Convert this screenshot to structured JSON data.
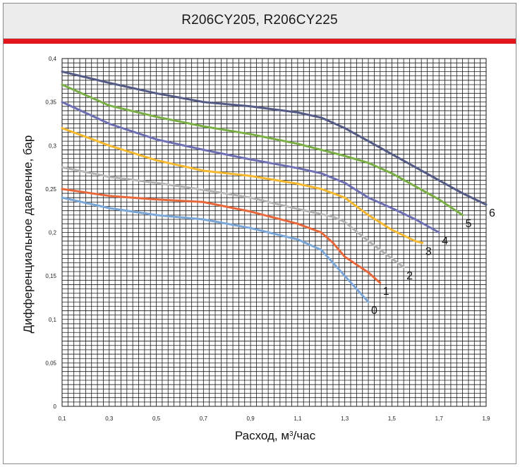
{
  "header": {
    "title": "R206CY205, R206CY225"
  },
  "colors": {
    "accent_bar": "#e3161c",
    "grid": "#1a1a1a"
  },
  "chart_data": {
    "type": "line",
    "title": "R206CY205, R206CY225",
    "xlabel": "Расход, м³/час",
    "ylabel": "Дифференциальное давление, бар",
    "xlim": [
      0.1,
      1.9
    ],
    "ylim": [
      0,
      0.4
    ],
    "x_ticks": [
      "0,1",
      "0,3",
      "0,5",
      "0,7",
      "0,9",
      "1,1",
      "1,3",
      "1,5",
      "1,7",
      "1,9"
    ],
    "y_ticks": [
      "0",
      "0,05",
      "0,1",
      "0,15",
      "0,2",
      "0,25",
      "0,3",
      "0,35",
      "0,4"
    ],
    "grid": true,
    "series": [
      {
        "name": "0",
        "color": "#7aa6d8",
        "points": [
          [
            0.1,
            0.24
          ],
          [
            0.3,
            0.228
          ],
          [
            0.5,
            0.22
          ],
          [
            0.7,
            0.215
          ],
          [
            0.9,
            0.205
          ],
          [
            1.1,
            0.192
          ],
          [
            1.2,
            0.18
          ],
          [
            1.25,
            0.165
          ],
          [
            1.3,
            0.15
          ],
          [
            1.35,
            0.135
          ],
          [
            1.4,
            0.12
          ]
        ]
      },
      {
        "name": "1",
        "color": "#e8673a",
        "points": [
          [
            0.1,
            0.25
          ],
          [
            0.3,
            0.242
          ],
          [
            0.5,
            0.238
          ],
          [
            0.7,
            0.235
          ],
          [
            0.9,
            0.224
          ],
          [
            1.1,
            0.21
          ],
          [
            1.2,
            0.2
          ],
          [
            1.25,
            0.188
          ],
          [
            1.3,
            0.172
          ],
          [
            1.4,
            0.154
          ],
          [
            1.45,
            0.142
          ]
        ]
      },
      {
        "name": "2",
        "color": "#b4b4b4",
        "points": [
          [
            0.1,
            0.275
          ],
          [
            0.3,
            0.264
          ],
          [
            0.5,
            0.257
          ],
          [
            0.7,
            0.249
          ],
          [
            0.9,
            0.24
          ],
          [
            1.1,
            0.227
          ],
          [
            1.25,
            0.218
          ],
          [
            1.3,
            0.212
          ],
          [
            1.4,
            0.19
          ],
          [
            1.5,
            0.17
          ],
          [
            1.55,
            0.16
          ]
        ]
      },
      {
        "name": "3",
        "color": "#f5b82e",
        "points": [
          [
            0.1,
            0.32
          ],
          [
            0.3,
            0.3
          ],
          [
            0.5,
            0.283
          ],
          [
            0.7,
            0.271
          ],
          [
            0.9,
            0.265
          ],
          [
            1.1,
            0.256
          ],
          [
            1.2,
            0.25
          ],
          [
            1.3,
            0.24
          ],
          [
            1.4,
            0.22
          ],
          [
            1.5,
            0.203
          ],
          [
            1.6,
            0.19
          ],
          [
            1.63,
            0.188
          ]
        ]
      },
      {
        "name": "4",
        "color": "#6f70b4",
        "points": [
          [
            0.1,
            0.35
          ],
          [
            0.3,
            0.325
          ],
          [
            0.5,
            0.307
          ],
          [
            0.7,
            0.295
          ],
          [
            0.9,
            0.284
          ],
          [
            1.1,
            0.274
          ],
          [
            1.2,
            0.268
          ],
          [
            1.3,
            0.257
          ],
          [
            1.4,
            0.24
          ],
          [
            1.5,
            0.228
          ],
          [
            1.6,
            0.215
          ],
          [
            1.7,
            0.2
          ]
        ]
      },
      {
        "name": "5",
        "color": "#7aaf45",
        "points": [
          [
            0.1,
            0.37
          ],
          [
            0.3,
            0.346
          ],
          [
            0.5,
            0.333
          ],
          [
            0.7,
            0.322
          ],
          [
            0.9,
            0.313
          ],
          [
            1.1,
            0.302
          ],
          [
            1.2,
            0.295
          ],
          [
            1.3,
            0.288
          ],
          [
            1.4,
            0.28
          ],
          [
            1.5,
            0.268
          ],
          [
            1.6,
            0.253
          ],
          [
            1.7,
            0.238
          ],
          [
            1.8,
            0.22
          ]
        ]
      },
      {
        "name": "6",
        "color": "#545b85",
        "points": [
          [
            0.1,
            0.385
          ],
          [
            0.3,
            0.372
          ],
          [
            0.5,
            0.36
          ],
          [
            0.7,
            0.35
          ],
          [
            0.9,
            0.345
          ],
          [
            1.1,
            0.338
          ],
          [
            1.2,
            0.332
          ],
          [
            1.3,
            0.32
          ],
          [
            1.4,
            0.305
          ],
          [
            1.5,
            0.29
          ],
          [
            1.6,
            0.275
          ],
          [
            1.7,
            0.26
          ],
          [
            1.8,
            0.245
          ],
          [
            1.9,
            0.232
          ]
        ]
      }
    ]
  }
}
